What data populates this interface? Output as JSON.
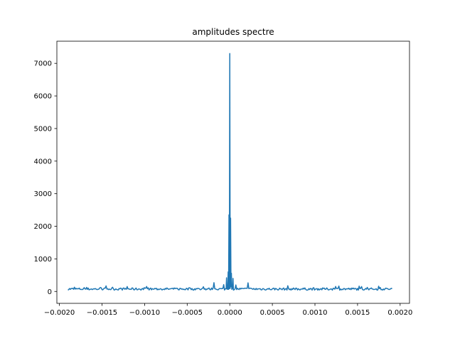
{
  "chart_data": {
    "type": "line",
    "title": "amplitudes spectre",
    "xlabel": "",
    "ylabel": "",
    "xlim": [
      -0.00203,
      0.00211
    ],
    "ylim": [
      -365,
      7680
    ],
    "grid": false,
    "line_color": "#1f77b4",
    "x_ticks": [
      -0.002,
      -0.0015,
      -0.001,
      -0.0005,
      0.0,
      0.0005,
      0.001,
      0.0015,
      0.002
    ],
    "x_tick_labels": [
      "−0.0020",
      "−0.0015",
      "−0.0010",
      "−0.0005",
      "0.0000",
      "0.0005",
      "0.0010",
      "0.0015",
      "0.0020"
    ],
    "y_ticks": [
      0,
      1000,
      2000,
      3000,
      4000,
      5000,
      6000,
      7000
    ],
    "y_tick_labels": [
      "0",
      "1000",
      "2000",
      "3000",
      "4000",
      "5000",
      "6000",
      "7000"
    ],
    "series": [
      {
        "x_range": [
          -0.0019,
          0.0019
        ],
        "num_points": 400,
        "baseline": 75,
        "peaks": [
          {
            "x": 0.0,
            "y": 7300
          },
          {
            "x": -9.5e-06,
            "y": 2350
          },
          {
            "x": 9.5e-06,
            "y": 2250
          },
          {
            "x": -1.9e-05,
            "y": 600
          },
          {
            "x": 1.9e-05,
            "y": 560
          },
          {
            "x": -3.8e-05,
            "y": 420
          },
          {
            "x": 3.8e-05,
            "y": 400
          },
          {
            "x": -0.00019,
            "y": 270
          },
          {
            "x": 0.00021,
            "y": 265
          },
          {
            "x": -7e-05,
            "y": 210
          },
          {
            "x": 7e-05,
            "y": 200
          },
          {
            "x": -0.00145,
            "y": 170
          },
          {
            "x": 0.00068,
            "y": 175
          },
          {
            "x": 0.00128,
            "y": 165
          },
          {
            "x": 0.00175,
            "y": 160
          },
          {
            "x": -0.0012,
            "y": 150
          }
        ]
      }
    ]
  }
}
